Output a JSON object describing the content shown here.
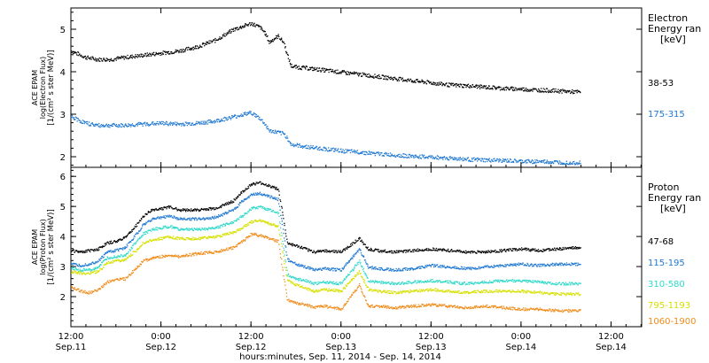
{
  "colors": {
    "axis": "#000000",
    "black": "#000000",
    "blue": "#1f78d1",
    "cyan": "#2fd9c9",
    "yellow": "#d6e000",
    "orange": "#f08c1a"
  },
  "chart_data": [
    {
      "type": "scatter",
      "panel": "electron",
      "ylabel": [
        "ACE EPAM",
        "log(Electron Flux)",
        "[1/(cm² s ster MeV)]"
      ],
      "legend_title": [
        "Electron",
        "Energy ran",
        "[keV]"
      ],
      "ylim": [
        1.75,
        5.5
      ],
      "yticks": [
        2,
        3,
        4,
        5
      ],
      "series": [
        {
          "name": "38-53",
          "color": "#000000",
          "x": [
            0.0,
            0.08,
            0.15,
            0.22,
            0.3,
            0.4,
            0.5,
            0.6,
            0.7,
            0.8,
            0.9,
            1.0,
            1.05,
            1.08,
            1.1,
            1.13,
            1.15,
            1.18,
            1.2,
            1.22,
            1.25,
            1.3,
            1.4,
            1.5,
            1.6,
            1.7,
            1.8,
            1.9,
            2.0,
            2.1,
            2.2,
            2.3,
            2.4,
            2.5,
            2.6,
            2.7,
            2.83
          ],
          "y": [
            4.5,
            4.35,
            4.3,
            4.3,
            4.35,
            4.4,
            4.45,
            4.5,
            4.6,
            4.75,
            5.0,
            5.15,
            5.05,
            4.9,
            4.7,
            4.8,
            4.85,
            4.7,
            4.4,
            4.15,
            4.12,
            4.1,
            4.05,
            4.0,
            3.95,
            3.9,
            3.85,
            3.8,
            3.75,
            3.7,
            3.68,
            3.65,
            3.62,
            3.6,
            3.58,
            3.56,
            3.53
          ]
        },
        {
          "name": "175-315",
          "color": "#1f78d1",
          "x": [
            0.0,
            0.08,
            0.15,
            0.22,
            0.3,
            0.4,
            0.5,
            0.6,
            0.7,
            0.8,
            0.9,
            1.0,
            1.05,
            1.08,
            1.1,
            1.13,
            1.15,
            1.18,
            1.2,
            1.22,
            1.25,
            1.3,
            1.4,
            1.5,
            1.6,
            1.7,
            1.8,
            1.9,
            2.0,
            2.1,
            2.2,
            2.3,
            2.4,
            2.5,
            2.6,
            2.7,
            2.83
          ],
          "y": [
            2.95,
            2.8,
            2.75,
            2.75,
            2.75,
            2.78,
            2.8,
            2.78,
            2.8,
            2.85,
            2.95,
            3.05,
            2.9,
            2.75,
            2.62,
            2.6,
            2.58,
            2.55,
            2.45,
            2.3,
            2.28,
            2.25,
            2.2,
            2.15,
            2.12,
            2.08,
            2.05,
            2.02,
            2.0,
            1.98,
            1.95,
            1.93,
            1.92,
            1.9,
            1.9,
            1.88,
            1.87
          ]
        }
      ]
    },
    {
      "type": "scatter",
      "panel": "proton",
      "ylabel": [
        "ACE EPAM",
        "log(Proton Flux)",
        "[1/(cm² s ster MeV)]"
      ],
      "legend_title": [
        "Proton",
        "Energy ran",
        "[keV]"
      ],
      "ylim": [
        1.0,
        6.3
      ],
      "yticks": [
        2,
        3,
        4,
        5,
        6
      ],
      "ytick_labels": [
        "2",
        "3",
        "4",
        "5",
        "6"
      ],
      "series": [
        {
          "name": "47-68",
          "color": "#000000",
          "x": [
            0.0,
            0.05,
            0.1,
            0.15,
            0.2,
            0.25,
            0.3,
            0.35,
            0.4,
            0.45,
            0.5,
            0.55,
            0.6,
            0.7,
            0.8,
            0.9,
            0.95,
            1.0,
            1.05,
            1.1,
            1.15,
            1.2,
            1.25,
            1.3,
            1.35,
            1.4,
            1.5,
            1.6,
            1.65,
            1.7,
            1.8,
            1.9,
            2.0,
            2.1,
            2.2,
            2.3,
            2.4,
            2.5,
            2.6,
            2.7,
            2.83
          ],
          "y": [
            3.55,
            3.5,
            3.55,
            3.6,
            3.8,
            3.85,
            4.0,
            4.3,
            4.7,
            4.9,
            4.95,
            5.0,
            4.9,
            4.9,
            4.95,
            5.2,
            5.5,
            5.75,
            5.8,
            5.7,
            5.6,
            3.8,
            3.7,
            3.6,
            3.5,
            3.55,
            3.5,
            3.95,
            3.6,
            3.55,
            3.5,
            3.55,
            3.6,
            3.55,
            3.5,
            3.5,
            3.55,
            3.6,
            3.55,
            3.6,
            3.65
          ]
        },
        {
          "name": "115-195",
          "color": "#1f78d1",
          "x": [
            0.0,
            0.05,
            0.1,
            0.15,
            0.2,
            0.25,
            0.3,
            0.35,
            0.4,
            0.45,
            0.5,
            0.55,
            0.6,
            0.7,
            0.8,
            0.9,
            0.95,
            1.0,
            1.05,
            1.1,
            1.15,
            1.2,
            1.25,
            1.3,
            1.35,
            1.4,
            1.5,
            1.6,
            1.65,
            1.7,
            1.8,
            1.9,
            2.0,
            2.1,
            2.2,
            2.3,
            2.4,
            2.5,
            2.6,
            2.7,
            2.83
          ],
          "y": [
            3.1,
            3.05,
            3.1,
            3.2,
            3.5,
            3.55,
            3.65,
            4.0,
            4.4,
            4.6,
            4.65,
            4.7,
            4.6,
            4.6,
            4.65,
            4.9,
            5.2,
            5.4,
            5.45,
            5.35,
            5.25,
            3.25,
            3.1,
            3.0,
            2.9,
            2.95,
            2.9,
            3.6,
            3.0,
            2.95,
            2.9,
            2.95,
            3.05,
            3.0,
            2.95,
            3.0,
            3.05,
            3.1,
            3.05,
            3.1,
            3.1
          ]
        },
        {
          "name": "310-580",
          "color": "#2fd9c9",
          "x": [
            0.0,
            0.05,
            0.1,
            0.15,
            0.2,
            0.25,
            0.3,
            0.35,
            0.4,
            0.45,
            0.5,
            0.55,
            0.6,
            0.7,
            0.8,
            0.9,
            0.95,
            1.0,
            1.05,
            1.1,
            1.15,
            1.2,
            1.25,
            1.3,
            1.35,
            1.4,
            1.5,
            1.6,
            1.65,
            1.7,
            1.8,
            1.9,
            2.0,
            2.1,
            2.2,
            2.3,
            2.4,
            2.5,
            2.6,
            2.7,
            2.83
          ],
          "y": [
            2.95,
            2.9,
            2.9,
            3.0,
            3.3,
            3.35,
            3.4,
            3.75,
            4.1,
            4.25,
            4.3,
            4.35,
            4.25,
            4.25,
            4.3,
            4.5,
            4.7,
            4.95,
            5.0,
            4.9,
            4.8,
            2.75,
            2.6,
            2.55,
            2.45,
            2.5,
            2.45,
            3.2,
            2.55,
            2.5,
            2.45,
            2.5,
            2.55,
            2.5,
            2.45,
            2.5,
            2.55,
            2.55,
            2.5,
            2.45,
            2.45
          ]
        },
        {
          "name": "795-1193",
          "color": "#d6e000",
          "x": [
            0.0,
            0.05,
            0.1,
            0.15,
            0.2,
            0.25,
            0.3,
            0.35,
            0.4,
            0.45,
            0.5,
            0.55,
            0.6,
            0.7,
            0.8,
            0.9,
            0.95,
            1.0,
            1.05,
            1.1,
            1.15,
            1.2,
            1.25,
            1.3,
            1.35,
            1.4,
            1.5,
            1.6,
            1.65,
            1.7,
            1.8,
            1.9,
            2.0,
            2.1,
            2.2,
            2.3,
            2.4,
            2.5,
            2.6,
            2.7,
            2.83
          ],
          "y": [
            2.85,
            2.8,
            2.8,
            2.85,
            3.15,
            3.2,
            3.25,
            3.5,
            3.8,
            3.9,
            3.95,
            4.0,
            3.95,
            3.95,
            4.0,
            4.15,
            4.3,
            4.5,
            4.55,
            4.45,
            4.35,
            2.55,
            2.4,
            2.3,
            2.2,
            2.25,
            2.2,
            2.85,
            2.25,
            2.2,
            2.15,
            2.2,
            2.25,
            2.2,
            2.15,
            2.2,
            2.2,
            2.2,
            2.15,
            2.1,
            2.1
          ]
        },
        {
          "name": "1060-1900",
          "color": "#f08c1a",
          "x": [
            0.0,
            0.05,
            0.1,
            0.15,
            0.2,
            0.25,
            0.3,
            0.35,
            0.4,
            0.45,
            0.5,
            0.55,
            0.6,
            0.7,
            0.8,
            0.9,
            0.95,
            1.0,
            1.05,
            1.1,
            1.15,
            1.2,
            1.25,
            1.3,
            1.35,
            1.4,
            1.5,
            1.6,
            1.65,
            1.7,
            1.8,
            1.9,
            2.0,
            2.1,
            2.2,
            2.3,
            2.4,
            2.5,
            2.6,
            2.7,
            2.83
          ],
          "y": [
            2.35,
            2.2,
            2.15,
            2.25,
            2.5,
            2.6,
            2.6,
            2.9,
            3.2,
            3.3,
            3.35,
            3.4,
            3.35,
            3.45,
            3.5,
            3.65,
            3.85,
            4.1,
            4.05,
            3.95,
            3.85,
            1.9,
            1.8,
            1.75,
            1.65,
            1.7,
            1.6,
            2.4,
            1.7,
            1.7,
            1.65,
            1.7,
            1.75,
            1.7,
            1.65,
            1.7,
            1.65,
            1.6,
            1.6,
            1.55,
            1.55
          ]
        }
      ]
    }
  ],
  "x_axis": {
    "xlim": [
      0.0,
      3.17
    ],
    "ticks": [
      {
        "x": 0.0,
        "time": "12:00",
        "date": "Sep.11"
      },
      {
        "x": 0.5,
        "time": "0:00",
        "date": "Sep.12"
      },
      {
        "x": 1.0,
        "time": "12:00",
        "date": "Sep.12"
      },
      {
        "x": 1.5,
        "time": "0:00",
        "date": "Sep.13"
      },
      {
        "x": 2.0,
        "time": "12:00",
        "date": "Sep.13"
      },
      {
        "x": 2.5,
        "time": "0:00",
        "date": "Sep.14"
      },
      {
        "x": 3.0,
        "time": "12:00",
        "date": "Sep.14"
      }
    ],
    "label": "hours:minutes, Sep. 11, 2014 - Sep. 14, 2014"
  }
}
